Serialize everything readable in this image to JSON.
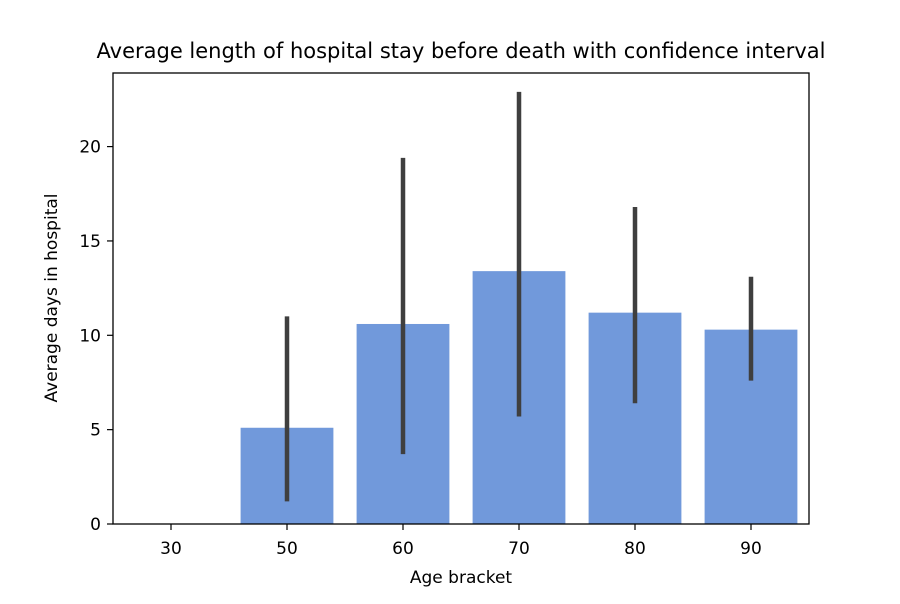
{
  "chart_data": {
    "type": "bar",
    "title": "Average length of hospital stay before death with confidence interval",
    "xlabel": "Age bracket",
    "ylabel": "Average days in hospital",
    "categories": [
      "30",
      "50",
      "60",
      "70",
      "80",
      "90"
    ],
    "values": [
      0,
      5.1,
      10.6,
      13.4,
      11.2,
      10.3
    ],
    "ci_low": [
      null,
      1.2,
      3.7,
      5.7,
      6.4,
      7.6
    ],
    "ci_high": [
      null,
      11.0,
      19.4,
      22.9,
      16.8,
      13.1
    ],
    "ylim": [
      0,
      23.9
    ],
    "yticks": [
      0,
      5,
      10,
      15,
      20
    ],
    "grid": false,
    "legend": "none",
    "bar_color": "#7199DB",
    "errorbar_color": "#3F3F3F"
  }
}
